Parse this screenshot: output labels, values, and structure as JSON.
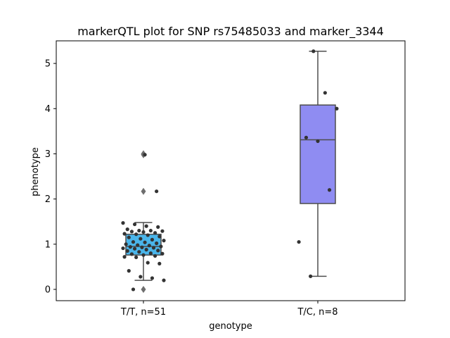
{
  "chart_data": {
    "type": "box",
    "title": "markerQTL plot for SNP rs75485033 and marker_3344",
    "xlabel": "genotype",
    "ylabel": "phenotype",
    "ylim": [
      -0.25,
      5.5
    ],
    "yticks": [
      0,
      1,
      2,
      3,
      4,
      5
    ],
    "grid": false,
    "categories": [
      "T/T, n=51",
      "T/C, n=8"
    ],
    "groups": [
      {
        "label": "T/T, n=51",
        "color": "#4ab5ea",
        "q1": 0.76,
        "median": 0.95,
        "q3": 1.22,
        "whisker_low": 0.2,
        "whisker_high": 1.48,
        "outliers": [
          3.0,
          2.98,
          2.17,
          0.0
        ],
        "points": [
          1.47,
          1.44,
          1.4,
          1.38,
          1.33,
          1.3,
          1.3,
          1.29,
          1.28,
          1.27,
          1.25,
          1.23,
          1.22,
          1.2,
          1.17,
          1.15,
          1.12,
          1.1,
          1.08,
          1.05,
          1.04,
          1.02,
          1.0,
          0.98,
          0.97,
          0.95,
          0.94,
          0.93,
          0.92,
          0.91,
          0.9,
          0.88,
          0.86,
          0.85,
          0.83,
          0.8,
          0.79,
          0.78,
          0.76,
          0.74,
          0.72,
          0.71,
          0.59,
          0.57,
          0.41,
          0.28,
          0.25,
          0.2,
          0.0,
          2.98,
          2.17
        ]
      },
      {
        "label": "T/C, n=8",
        "color": "#8f8cf2",
        "q1": 1.9,
        "median": 3.31,
        "q3": 4.08,
        "whisker_low": 0.29,
        "whisker_high": 5.27,
        "outliers": [],
        "points": [
          5.27,
          4.35,
          4.0,
          3.36,
          3.28,
          2.2,
          1.05,
          0.29
        ]
      }
    ]
  }
}
